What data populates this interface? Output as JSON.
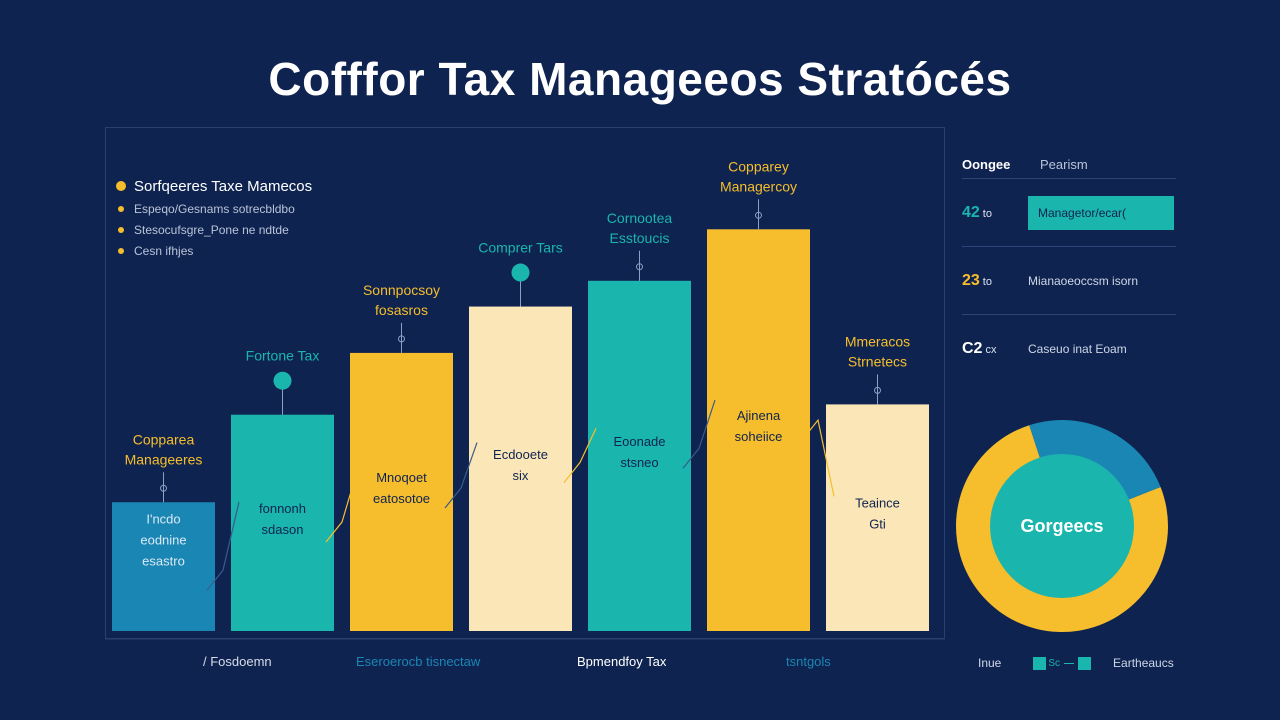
{
  "title": "Cofffor Tax Manageeos Stratócés",
  "legend": {
    "main": "Sorfqeeres Taxe Mamecos",
    "items": [
      "Espeqo/Gesnams sotrecbldbo",
      "Stesocufsgre_Pone ne ndtde",
      "Cesn ifhjes"
    ]
  },
  "chart_data": {
    "type": "bar",
    "title": "Cofffor Tax Manageeos Stratócés",
    "ylim": [
      0,
      100
    ],
    "categories": [
      "/ Fosdoemn",
      "",
      "Eseroerocb tisnectaw",
      "",
      "Bpmendfoy Tax",
      "",
      "tsntgols"
    ],
    "bars": [
      {
        "value": 25,
        "color": "#1a86b4",
        "annotation": [
          "Copparea",
          "Manageeres"
        ],
        "annotation_color": "#f6be2c",
        "inner": [
          "I'ncdo",
          "eodnine",
          "esastro"
        ],
        "inner_color": "#dbeaf5",
        "has_dot": false
      },
      {
        "value": 42,
        "color": "#1ab5ad",
        "annotation": [
          "Fortone Tax"
        ],
        "annotation_color": "#1ab5ad",
        "inner": [
          "fonnonh",
          "sdason"
        ],
        "inner_color": "#0f2350",
        "has_dot": true
      },
      {
        "value": 54,
        "color": "#f6be2c",
        "annotation": [
          "Sonnpocsoy",
          "fosasros"
        ],
        "annotation_color": "#f6be2c",
        "inner": [
          "Mnoqoet",
          "eatosotoe"
        ],
        "inner_color": "#0f2350",
        "has_dot": false
      },
      {
        "value": 63,
        "color": "#fbe6b8",
        "annotation": [
          "Comprer Tars"
        ],
        "annotation_color": "#1ab5ad",
        "inner": [
          "Ecdooete",
          "six"
        ],
        "inner_color": "#0f2350",
        "has_dot": true
      },
      {
        "value": 68,
        "color": "#1ab5ad",
        "annotation": [
          "Cornootea",
          "Esstoucis"
        ],
        "annotation_color": "#1ab5ad",
        "inner": [
          "Eoonade",
          "stsneo"
        ],
        "inner_color": "#0f2350",
        "has_dot": false
      },
      {
        "value": 78,
        "color": "#f6be2c",
        "annotation": [
          "Copparey",
          "Managercoy"
        ],
        "annotation_color": "#f6be2c",
        "inner": [
          "Ajinena",
          "soheiice"
        ],
        "inner_color": "#0f2350",
        "has_dot": false
      },
      {
        "value": 44,
        "color": "#fbe6b8",
        "annotation": [
          "Mmeracos",
          "Strnetecs"
        ],
        "annotation_color": "#f6be2c",
        "inner": [
          "Teaince",
          "Gti"
        ],
        "inner_color": "#0f2350",
        "has_dot": false
      }
    ]
  },
  "side_panel": {
    "header1": "Oongee",
    "header2": "Pearism",
    "rows": [
      {
        "num": "42",
        "unit": "to",
        "label": "Managetor/ecar(",
        "num_color": "#1ab5ad",
        "highlight": true
      },
      {
        "num": "23",
        "unit": "to",
        "label": "Mianaoeoccsm isorn",
        "num_color": "#f6be2c",
        "highlight": false
      },
      {
        "num": "C2",
        "unit": "cx",
        "label": "Caseuo inat Eoam",
        "num_color": "#ffffff",
        "highlight": false
      }
    ]
  },
  "donut": {
    "center_label": "Gorgeecs",
    "slices": [
      {
        "value": 76,
        "color": "#f6be2c"
      },
      {
        "value": 24,
        "color": "#1a86b4"
      }
    ]
  },
  "donut_legend": {
    "label1": "Inue",
    "label2": "Sc",
    "label3": "Eartheaucs"
  },
  "x_label_colors": [
    "#d6dde9",
    "#1a86b4",
    "#ffffff",
    "#1a86b4"
  ]
}
